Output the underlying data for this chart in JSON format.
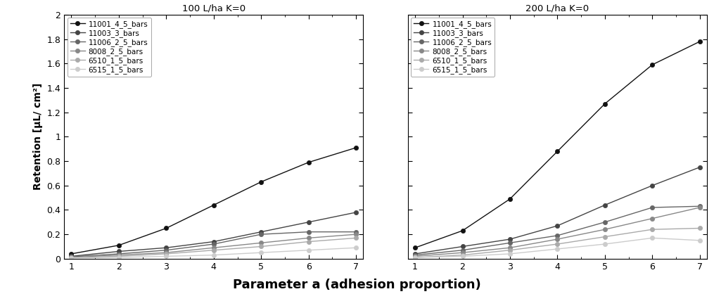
{
  "x": [
    1,
    2,
    3,
    4,
    5,
    6,
    7
  ],
  "title_left": "100 L/ha K=0",
  "title_right": "200 L/ha K=0",
  "xlabel": "Parameter a (adhesion proportion)",
  "ylabel": "Retention [µL/ cm²]",
  "ylim": [
    0,
    2.0
  ],
  "yticks": [
    0,
    0.2,
    0.4,
    0.6,
    0.8,
    1.0,
    1.2,
    1.4,
    1.6,
    1.8,
    2.0
  ],
  "ytick_labels": [
    "0",
    "0.2",
    "0.4",
    "0.6",
    "0.8",
    "1",
    "1.2",
    "1.4",
    "1.6",
    "1.8",
    "2"
  ],
  "series_labels": [
    "11001_4_5_bars",
    "11003_3_bars",
    "11006_2_5_bars",
    "8008_2_5_bars",
    "6510_1_5_bars",
    "6515_1_5_bars"
  ],
  "colors": [
    "#111111",
    "#444444",
    "#666666",
    "#888888",
    "#aaaaaa",
    "#cccccc"
  ],
  "markers": [
    "o",
    "o",
    "o",
    "o",
    "o",
    "o"
  ],
  "left_data": [
    [
      0.04,
      0.11,
      0.25,
      0.44,
      0.63,
      0.79,
      0.91
    ],
    [
      0.02,
      0.06,
      0.09,
      0.14,
      0.22,
      0.3,
      0.38
    ],
    [
      0.015,
      0.04,
      0.07,
      0.12,
      0.2,
      0.22,
      0.22
    ],
    [
      0.01,
      0.03,
      0.05,
      0.09,
      0.13,
      0.17,
      0.2
    ],
    [
      0.01,
      0.02,
      0.04,
      0.07,
      0.1,
      0.14,
      0.17
    ],
    [
      0.005,
      0.01,
      0.02,
      0.03,
      0.05,
      0.07,
      0.09
    ]
  ],
  "right_data": [
    [
      0.09,
      0.23,
      0.49,
      0.88,
      1.27,
      1.59,
      1.78
    ],
    [
      0.04,
      0.1,
      0.16,
      0.27,
      0.44,
      0.6,
      0.75
    ],
    [
      0.03,
      0.07,
      0.13,
      0.19,
      0.3,
      0.42,
      0.43
    ],
    [
      0.02,
      0.05,
      0.09,
      0.16,
      0.24,
      0.33,
      0.42
    ],
    [
      0.01,
      0.03,
      0.07,
      0.12,
      0.18,
      0.24,
      0.25
    ],
    [
      0.01,
      0.02,
      0.04,
      0.08,
      0.12,
      0.17,
      0.15
    ]
  ],
  "background_color": "#ffffff",
  "linewidth": 1.0,
  "markersize": 4.5,
  "legend_fontsize": 7.5,
  "axis_fontsize": 9,
  "title_fontsize": 9.5,
  "ylabel_fontsize": 10,
  "xlabel_fontsize": 13
}
